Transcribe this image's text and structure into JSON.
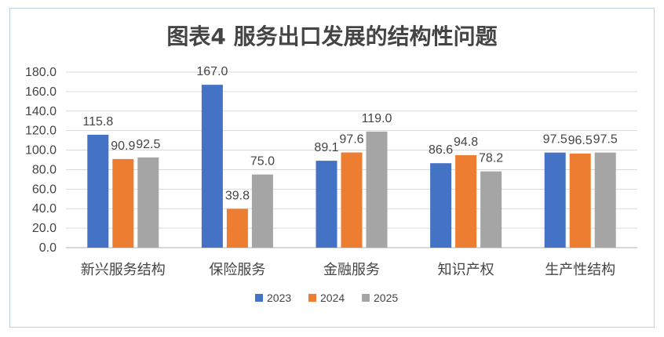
{
  "chart_data": {
    "type": "bar",
    "title": "图表4  服务出口发展的结构性问题",
    "xlabel": "",
    "ylabel": "",
    "ylim": [
      0,
      180
    ],
    "ytick_step": 20,
    "ytick_labels": [
      "0.0",
      "20.0",
      "40.0",
      "60.0",
      "80.0",
      "100.0",
      "120.0",
      "140.0",
      "160.0",
      "180.0"
    ],
    "grid": true,
    "legend_position": "bottom-center",
    "categories": [
      "新兴服务结构",
      "保险服务",
      "金融服务",
      "知识产权",
      "生产性结构"
    ],
    "series": [
      {
        "name": "2023",
        "color": "#4472c4",
        "values": [
          115.8,
          167.0,
          89.1,
          86.6,
          97.5
        ],
        "labels": [
          "115.8",
          "167.0",
          "89.1",
          "86.6",
          "97.5"
        ]
      },
      {
        "name": "2024",
        "color": "#ed7d31",
        "values": [
          90.9,
          39.8,
          97.6,
          94.8,
          96.5
        ],
        "labels": [
          "90.9",
          "39.8",
          "97.6",
          "94.8",
          "96.5"
        ]
      },
      {
        "name": "2025",
        "color": "#a5a5a5",
        "values": [
          92.5,
          75.0,
          119.0,
          78.2,
          97.5
        ],
        "labels": [
          "92.5",
          "75.0",
          "119.0",
          "78.2",
          "97.5"
        ]
      }
    ]
  }
}
